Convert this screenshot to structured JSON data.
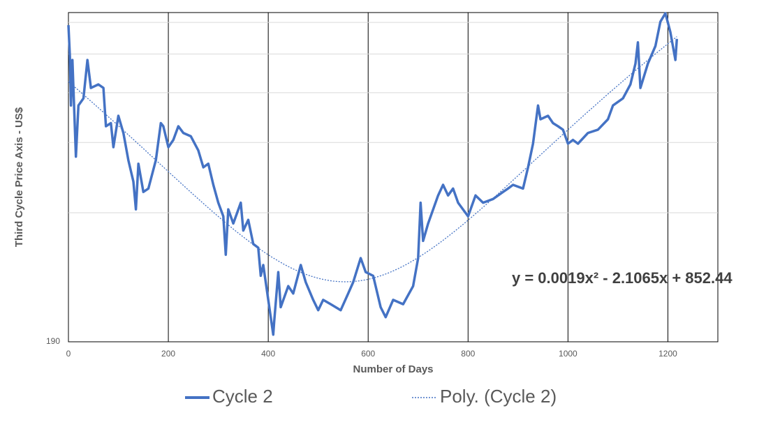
{
  "chart_data": {
    "type": "line",
    "xlabel": "Number of Days",
    "ylabel": "Third Cycle Price Axis - US$",
    "xlim": [
      0,
      1300
    ],
    "xticks": [
      0,
      200,
      400,
      600,
      800,
      1000,
      1200
    ],
    "ylim": [
      190,
      1270
    ],
    "yticks": [
      190
    ],
    "ygrid": [
      400,
      600,
      800,
      1000,
      1200
    ],
    "log_y": true,
    "grid": true,
    "legend": "bottom",
    "x": [
      0,
      3,
      5,
      8,
      15,
      20,
      30,
      38,
      45,
      60,
      70,
      75,
      85,
      90,
      100,
      110,
      120,
      130,
      135,
      140,
      150,
      160,
      175,
      185,
      190,
      200,
      210,
      220,
      230,
      245,
      260,
      270,
      280,
      290,
      300,
      310,
      315,
      320,
      330,
      345,
      350,
      360,
      370,
      380,
      385,
      390,
      410,
      412,
      420,
      425,
      440,
      450,
      465,
      475,
      490,
      500,
      510,
      525,
      545,
      560,
      570,
      585,
      595,
      610,
      625,
      635,
      650,
      670,
      690,
      700,
      705,
      710,
      720,
      740,
      750,
      760,
      770,
      780,
      800,
      815,
      830,
      850,
      870,
      880,
      890,
      910,
      920,
      930,
      940,
      945,
      960,
      970,
      980,
      990,
      1000,
      1010,
      1020,
      1040,
      1060,
      1080,
      1090,
      1110,
      1125,
      1135,
      1140,
      1145,
      1160,
      1175,
      1185,
      1195,
      1205,
      1215,
      1218
    ],
    "series": [
      {
        "name": "Cycle 2",
        "color": "#4472c4",
        "values": [
          1181,
          986,
          743,
          966,
          553,
          743,
          774,
          966,
          822,
          839,
          822,
          659,
          671,
          584,
          700,
          634,
          542,
          479,
          408,
          531,
          451,
          460,
          542,
          671,
          659,
          584,
          609,
          659,
          634,
          622,
          573,
          520,
          531,
          470,
          424,
          392,
          314,
          408,
          376,
          424,
          361,
          384,
          334,
          327,
          278,
          296,
          198,
          214,
          284,
          232,
          262,
          251,
          296,
          268,
          242,
          228,
          242,
          236,
          228,
          251,
          268,
          308,
          284,
          278,
          232,
          219,
          242,
          236,
          262,
          308,
          424,
          340,
          376,
          442,
          470,
          442,
          460,
          424,
          392,
          442,
          424,
          433,
          451,
          460,
          470,
          460,
          520,
          596,
          743,
          686,
          700,
          671,
          659,
          646,
          596,
          609,
          596,
          634,
          646,
          686,
          743,
          774,
          839,
          946,
          1069,
          822,
          946,
          1047,
          1205,
          1265,
          1134,
          966,
          1091
        ]
      }
    ],
    "trendline": {
      "name": "Poly. (Cycle 2)",
      "color": "#4472c4",
      "equation": "y = 0.0019x² - 2.1065x + 852.44",
      "coefficients": [
        0.0019,
        -2.1065,
        852.44
      ]
    }
  }
}
